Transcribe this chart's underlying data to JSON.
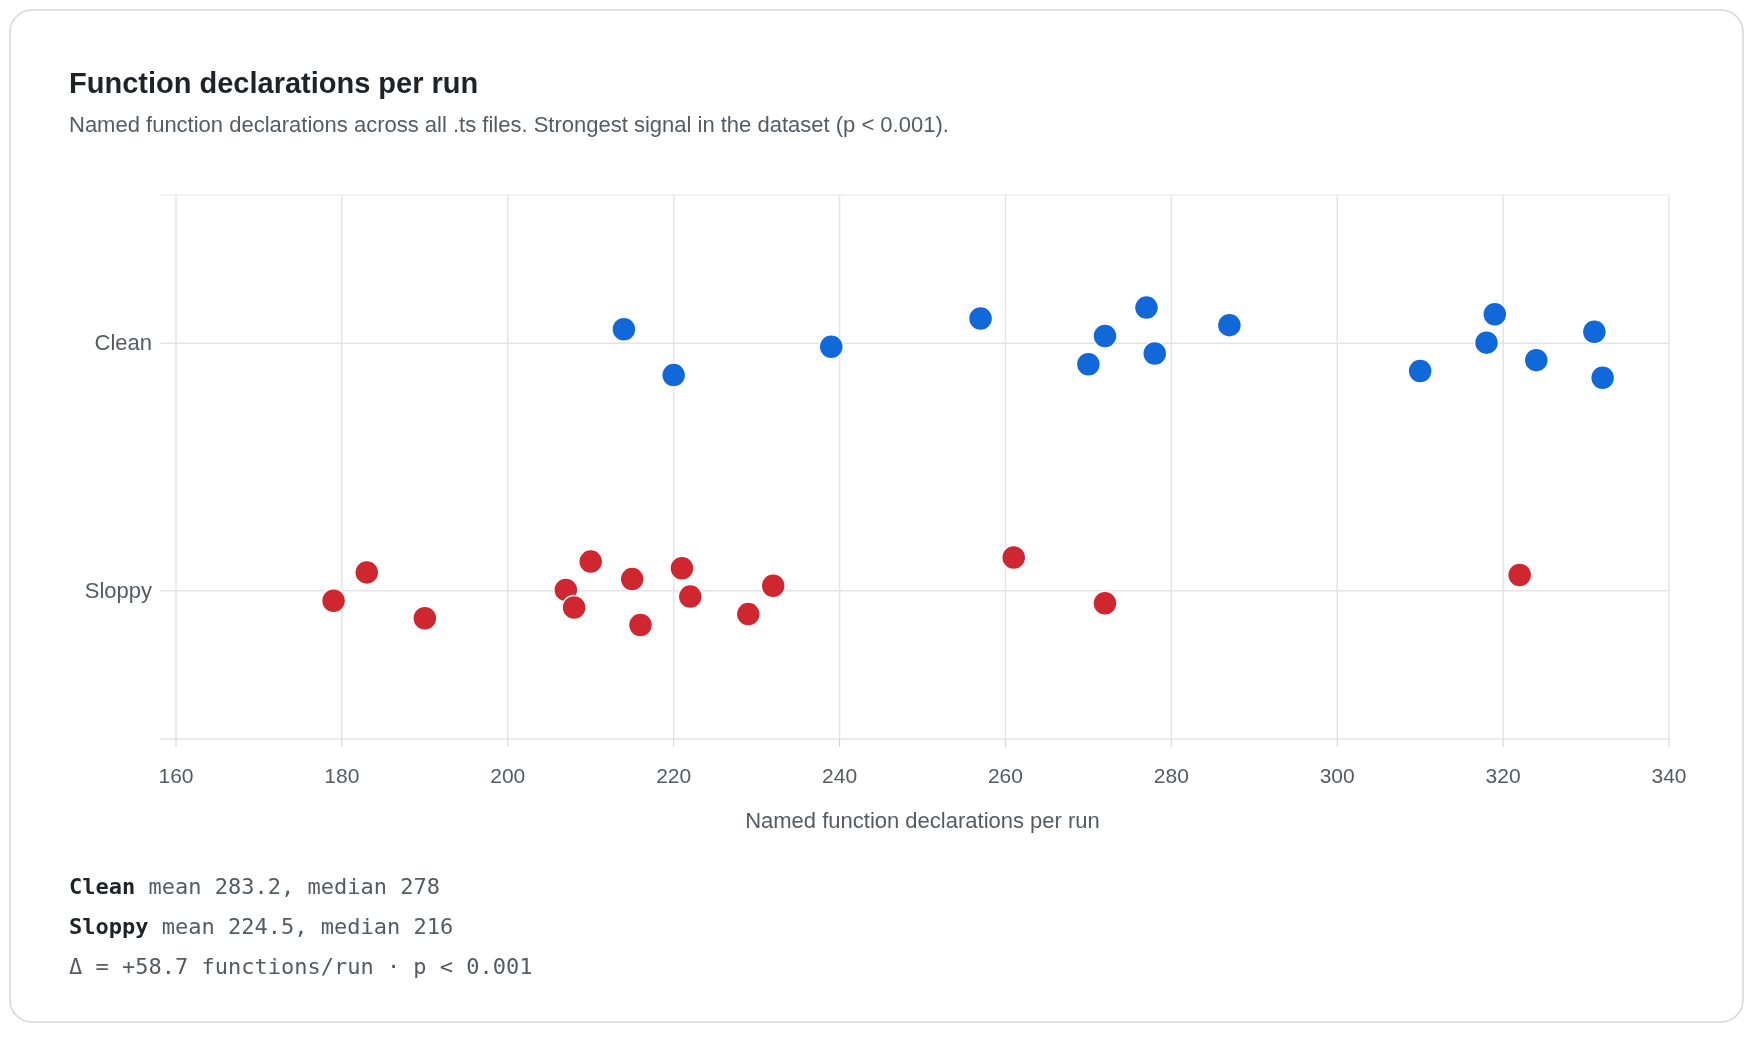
{
  "chart_data": {
    "type": "scatter",
    "orientation": "horizontal",
    "title": "Function declarations per run",
    "subtitle": "Named function declarations across all .ts files. Strongest signal in the dataset (p < 0.001).",
    "xlabel": "Named function declarations per run",
    "categories": [
      "Clean",
      "Sloppy"
    ],
    "xlim": [
      160,
      340
    ],
    "xticks": [
      160,
      180,
      200,
      220,
      240,
      260,
      280,
      300,
      320,
      340
    ],
    "grid": true,
    "marker": "circle",
    "series": [
      {
        "color": "#1168d8",
        "x": [
          "Clean",
          "Clean",
          "Clean",
          "Clean",
          "Clean",
          "Clean",
          "Clean",
          "Clean",
          "Clean",
          "Clean",
          "Clean",
          "Clean",
          "Clean",
          "Clean",
          "Clean"
        ],
        "values": [
          214,
          220,
          239,
          257,
          270,
          272,
          277,
          278,
          287,
          310,
          318,
          319,
          324,
          331,
          332
        ]
      },
      {
        "color": "#d0262f",
        "x": [
          "Sloppy",
          "Sloppy",
          "Sloppy",
          "Sloppy",
          "Sloppy",
          "Sloppy",
          "Sloppy",
          "Sloppy",
          "Sloppy",
          "Sloppy",
          "Sloppy",
          "Sloppy",
          "Sloppy",
          "Sloppy",
          "Sloppy"
        ],
        "values": [
          179,
          183,
          190,
          207,
          210,
          208,
          215,
          216,
          222,
          221,
          229,
          232,
          261,
          272,
          322
        ]
      }
    ],
    "annotations": [
      "Clean mean 283.2, median 278",
      "Sloppy mean 224.5, median 216",
      "Δ = +58.7 functions/run · p < 0.001"
    ]
  }
}
